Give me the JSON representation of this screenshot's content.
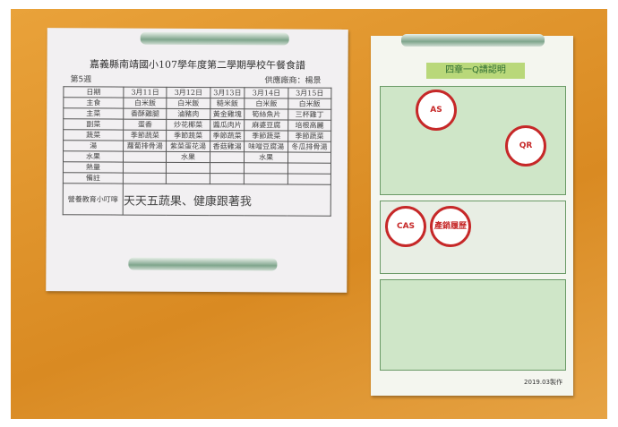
{
  "menu": {
    "title": "嘉義縣南靖國小107學年度第二學期學校午餐食譜",
    "week": "第5週",
    "supplier": "供應廠商：楊景",
    "headers": [
      "日期",
      "3月11日",
      "3月12日",
      "3月13日",
      "3月14日",
      "3月15日"
    ],
    "rows": [
      [
        "主食",
        "白米飯",
        "白米飯",
        "糙米飯",
        "白米飯",
        "白米飯"
      ],
      [
        "主菜",
        "香酥雞腿",
        "滷豬肉",
        "黃金雞塊",
        "筍絲魚片",
        "三杯雞丁"
      ],
      [
        "副菜",
        "蛋香",
        "炒花椰菜",
        "醬瓜肉片",
        "麻婆豆腐",
        "培根高麗"
      ],
      [
        "蔬菜",
        "季節蔬菜",
        "季節蔬菜",
        "季節蔬菜",
        "季節蔬菜",
        "季節蔬菜"
      ],
      [
        "湯",
        "蘿蔔排骨湯",
        "紫菜蛋花湯",
        "香菇雞湯",
        "味噌豆腐湯",
        "冬瓜排骨湯"
      ],
      [
        "水果",
        "",
        "水果",
        "",
        "水果",
        ""
      ],
      [
        "熱量",
        "",
        "",
        "",
        "",
        ""
      ],
      [
        "備註",
        "",
        "",
        "",
        "",
        ""
      ]
    ],
    "note_label": "營養教育小叮嚀",
    "slogan": "天天五蔬果、健康跟著我"
  },
  "poster": {
    "title": "四章一Q請認明",
    "badges": [
      "AS",
      "CAS",
      "產銷履歷",
      "QR"
    ],
    "footer": "2019.03製作"
  }
}
